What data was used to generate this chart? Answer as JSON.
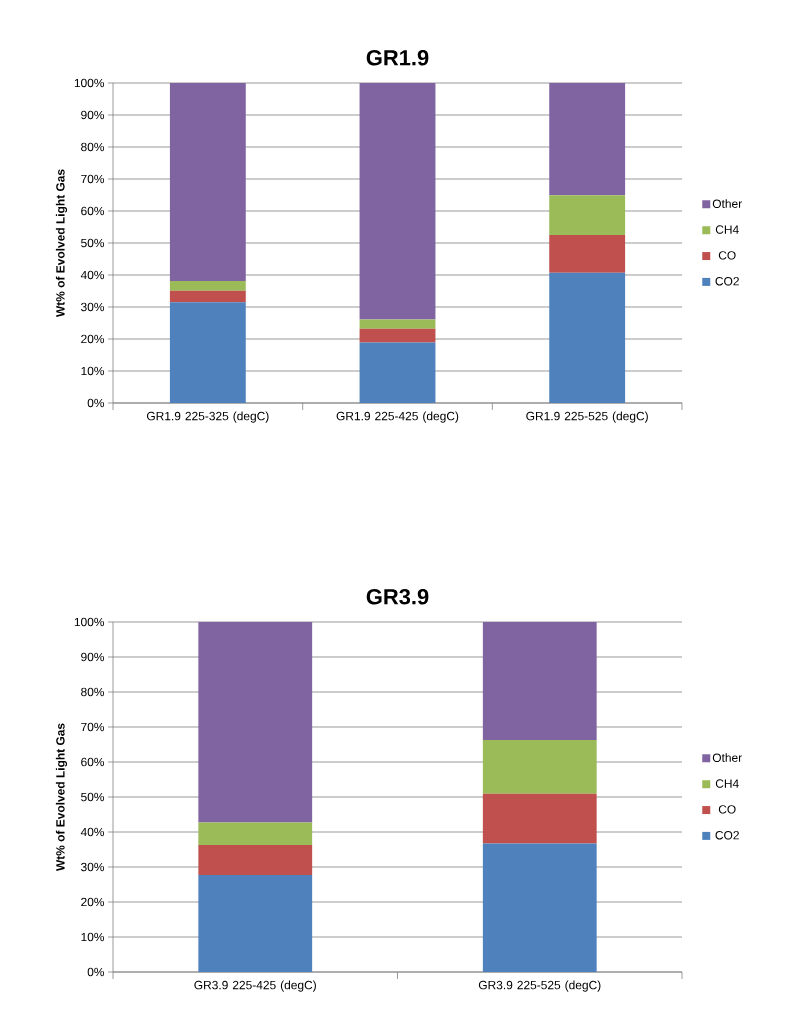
{
  "chart_data": [
    {
      "type": "bar",
      "title": "GR1.9",
      "ylabel": "Wt% of Evolved Light Gas",
      "stacked": true,
      "grid": "y",
      "legend": "right",
      "categories": [
        "GR1.9 225-325 (degC)",
        "GR1.9 225-425 (degC)",
        "GR1.9 225-525 (degC)"
      ],
      "ylim": [
        0,
        100
      ],
      "yticks": [
        {
          "value": 0,
          "label": "0%"
        },
        {
          "value": 10,
          "label": "10%"
        },
        {
          "value": 20,
          "label": "20%"
        },
        {
          "value": 30,
          "label": "30%"
        },
        {
          "value": 40,
          "label": "40%"
        },
        {
          "value": 50,
          "label": "50%"
        },
        {
          "value": 60,
          "label": "60%"
        },
        {
          "value": 70,
          "label": "70%"
        },
        {
          "value": 80,
          "label": "80%"
        },
        {
          "value": 90,
          "label": "90%"
        },
        {
          "value": 100,
          "label": "100%"
        }
      ],
      "series": [
        {
          "name": "CO2",
          "color": "#4f81bd",
          "values": [
            31.5,
            18.9,
            40.7
          ]
        },
        {
          "name": "CO",
          "color": "#c0504d",
          "values": [
            3.6,
            4.3,
            11.8
          ]
        },
        {
          "name": "CH4",
          "color": "#9bbb59",
          "values": [
            3.0,
            2.9,
            12.4
          ]
        },
        {
          "name": "Other",
          "color": "#8064a2",
          "values": [
            61.9,
            73.9,
            35.1
          ]
        }
      ]
    },
    {
      "type": "bar",
      "title": "GR3.9",
      "ylabel": "Wt% of Evolved Light Gas",
      "stacked": true,
      "grid": "y",
      "legend": "right",
      "categories": [
        "GR3.9 225-425 (degC)",
        "GR3.9 225-525 (degC)"
      ],
      "ylim": [
        0,
        100
      ],
      "yticks": [
        {
          "value": 0,
          "label": "0%"
        },
        {
          "value": 10,
          "label": "10%"
        },
        {
          "value": 20,
          "label": "20%"
        },
        {
          "value": 30,
          "label": "30%"
        },
        {
          "value": 40,
          "label": "40%"
        },
        {
          "value": 50,
          "label": "50%"
        },
        {
          "value": 60,
          "label": "60%"
        },
        {
          "value": 70,
          "label": "70%"
        },
        {
          "value": 80,
          "label": "80%"
        },
        {
          "value": 90,
          "label": "90%"
        },
        {
          "value": 100,
          "label": "100%"
        }
      ],
      "series": [
        {
          "name": "CO2",
          "color": "#4f81bd",
          "values": [
            27.7,
            36.7
          ]
        },
        {
          "name": "CO",
          "color": "#c0504d",
          "values": [
            8.6,
            14.2
          ]
        },
        {
          "name": "CH4",
          "color": "#9bbb59",
          "values": [
            6.4,
            15.4
          ]
        },
        {
          "name": "Other",
          "color": "#8064a2",
          "values": [
            57.3,
            33.7
          ]
        }
      ]
    }
  ]
}
